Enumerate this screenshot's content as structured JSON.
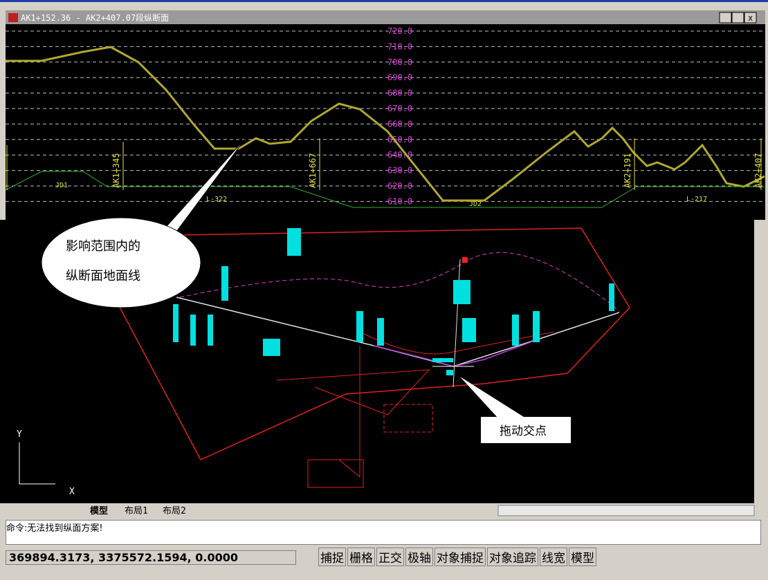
{
  "window": {
    "title": "AK1+152.36 - AK2+407.07段纵断面"
  },
  "profile": {
    "elevations": [
      "720.0",
      "710.0",
      "700.0",
      "690.0",
      "680.0",
      "670.0",
      "660.0",
      "650.0",
      "640.0",
      "630.0",
      "620.0",
      "610.0"
    ],
    "stations": [
      "AK1+345",
      "AK1+667",
      "AK2+191",
      "AK2+407"
    ],
    "labels": [
      "JD1",
      "L-322",
      "JD2",
      "L-217"
    ]
  },
  "callouts": {
    "ground_line": [
      "影响范围内的",
      "纵断面地面线"
    ],
    "drag": "拖动交点"
  },
  "axes": {
    "y": "Y",
    "x": "X"
  },
  "tabs": [
    "模型",
    "布局1",
    "布局2"
  ],
  "command": {
    "line": "命令:无法找到纵面方案!"
  },
  "status": {
    "coords": "369894.3173, 3375572.1594, 0.0000",
    "buttons": [
      "捕捉",
      "栅格",
      "正交",
      "极轴",
      "对象捕捉",
      "对象追踪",
      "线宽",
      "模型"
    ]
  }
}
